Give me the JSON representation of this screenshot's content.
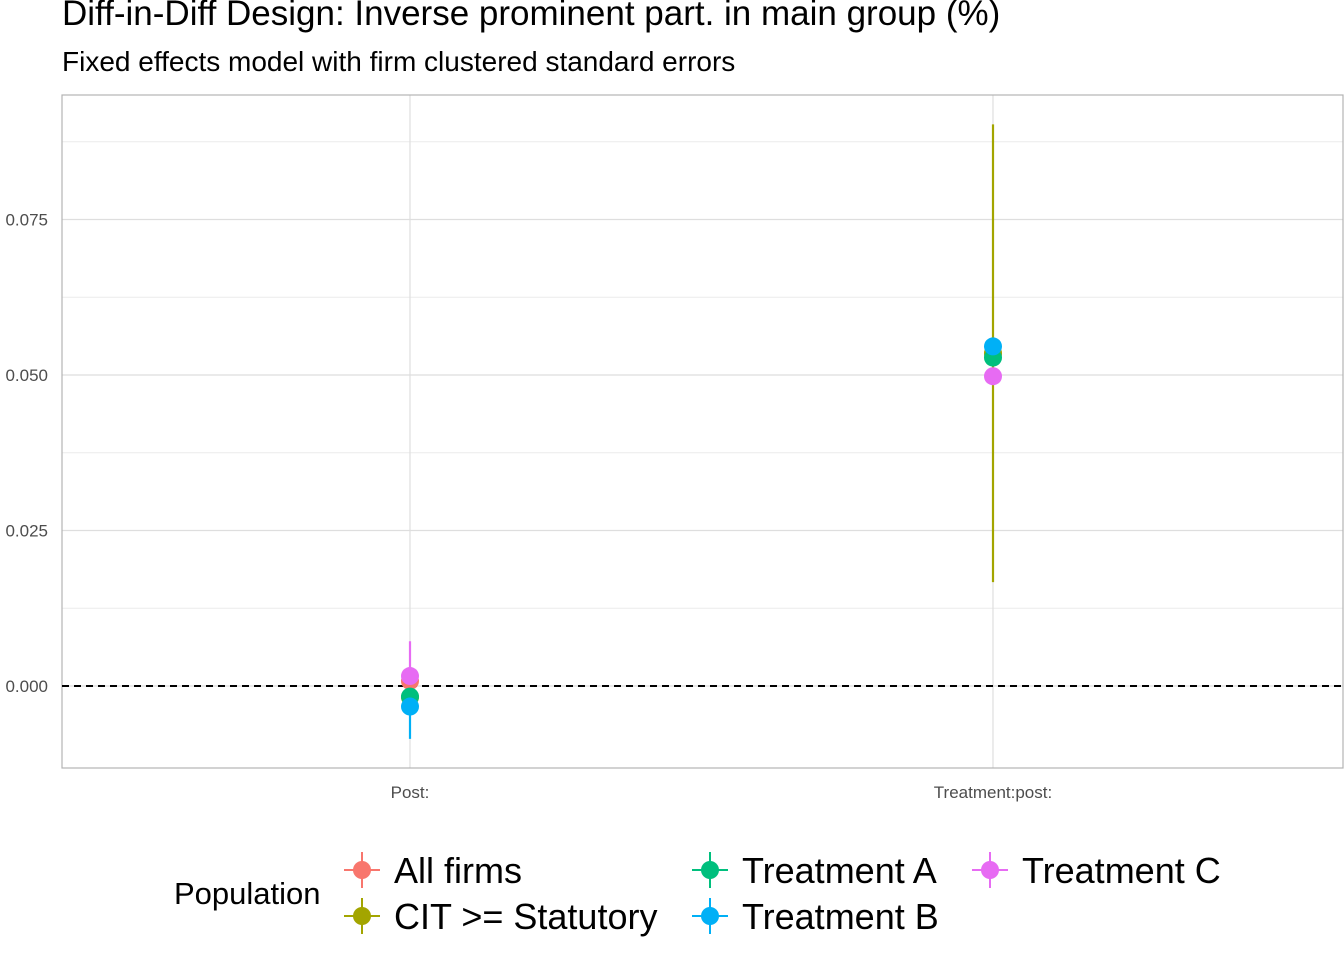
{
  "chart_data": {
    "type": "scatter",
    "title": "Diff-in-Diff Design: Inverse prominent part. in main group (%)",
    "subtitle": "Fixed effects model with firm clustered standard errors",
    "xlabel": "",
    "ylabel": "",
    "categories": [
      "Post:",
      "Treatment:post:"
    ],
    "ylim": [
      -0.0088,
      0.0945
    ],
    "yticks": [
      0.0,
      0.025,
      0.05,
      0.075
    ],
    "ytick_labels": [
      "0.000",
      "0.025",
      "0.050",
      "0.075"
    ],
    "reference_line": {
      "y": 0.0,
      "style": "dashed"
    },
    "grid": true,
    "legend": {
      "title": "Population",
      "position": "bottom"
    },
    "series": [
      {
        "name": "All firms",
        "color": "#F8766D",
        "points": [
          {
            "x": "Post:",
            "y": 0.0008,
            "lo": 0.0006,
            "hi": 0.001
          },
          {
            "x": "Treatment:post:",
            "y": 0.0534,
            "lo": 0.0532,
            "hi": 0.0536
          }
        ]
      },
      {
        "name": "CIT >= Statutory",
        "color": "#A3A500",
        "points": [
          {
            "x": "Post:",
            "y": -0.0018,
            "lo": -0.0028,
            "hi": -0.0008
          },
          {
            "x": "Treatment:post:",
            "y": 0.0535,
            "lo": 0.0167,
            "hi": 0.0903
          }
        ]
      },
      {
        "name": "Treatment A",
        "color": "#00BF7D",
        "points": [
          {
            "x": "Post:",
            "y": -0.0017,
            "lo": -0.002,
            "hi": -0.0014
          },
          {
            "x": "Treatment:post:",
            "y": 0.0528,
            "lo": 0.0525,
            "hi": 0.0531
          }
        ]
      },
      {
        "name": "Treatment B",
        "color": "#00B0F6",
        "points": [
          {
            "x": "Post:",
            "y": -0.0033,
            "lo": -0.0085,
            "hi": 0.0019
          },
          {
            "x": "Treatment:post:",
            "y": 0.0546,
            "lo": 0.0543,
            "hi": 0.0549
          }
        ]
      },
      {
        "name": "Treatment C",
        "color": "#E76BF3",
        "points": [
          {
            "x": "Post:",
            "y": 0.0016,
            "lo": -0.004,
            "hi": 0.0072
          },
          {
            "x": "Treatment:post:",
            "y": 0.0498,
            "lo": 0.0495,
            "hi": 0.0501
          }
        ]
      }
    ]
  }
}
